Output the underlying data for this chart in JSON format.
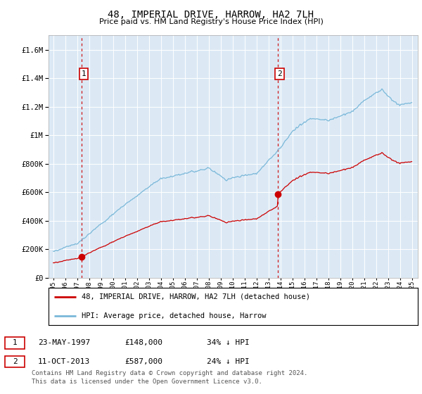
{
  "title": "48, IMPERIAL DRIVE, HARROW, HA2 7LH",
  "subtitle": "Price paid vs. HM Land Registry's House Price Index (HPI)",
  "plot_bg_color": "#dce9f5",
  "ylim": [
    0,
    1700000
  ],
  "yticks": [
    0,
    200000,
    400000,
    600000,
    800000,
    1000000,
    1200000,
    1400000,
    1600000
  ],
  "ytick_labels": [
    "£0",
    "£200K",
    "£400K",
    "£600K",
    "£800K",
    "£1M",
    "£1.2M",
    "£1.4M",
    "£1.6M"
  ],
  "sale1_year": 1997.38,
  "sale1_price": 148000,
  "sale1_label": "1",
  "sale2_year": 2013.78,
  "sale2_price": 587000,
  "sale2_label": "2",
  "hpi_color": "#7ab8d9",
  "sale_color": "#cc0000",
  "legend_entry1": "48, IMPERIAL DRIVE, HARROW, HA2 7LH (detached house)",
  "legend_entry2": "HPI: Average price, detached house, Harrow",
  "row1_num": "1",
  "row1_date": "23-MAY-1997",
  "row1_price": "£148,000",
  "row1_hpi": "34% ↓ HPI",
  "row2_num": "2",
  "row2_date": "11-OCT-2013",
  "row2_price": "£587,000",
  "row2_hpi": "24% ↓ HPI",
  "footer_line1": "Contains HM Land Registry data © Crown copyright and database right 2024.",
  "footer_line2": "This data is licensed under the Open Government Licence v3.0.",
  "xstart": 1995,
  "xend": 2025
}
